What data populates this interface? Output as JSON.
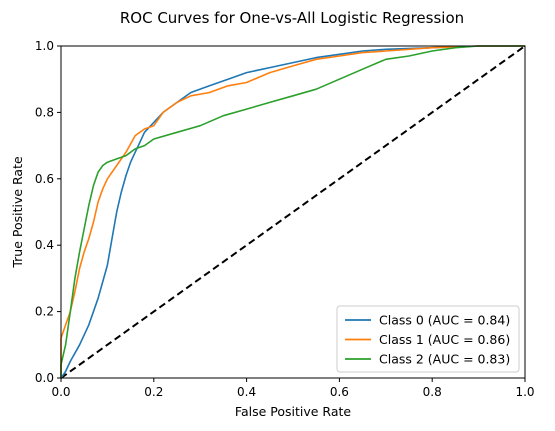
{
  "chart_data": {
    "type": "line",
    "title": "ROC Curves for One-vs-All Logistic Regression",
    "xlabel": "False Positive Rate",
    "ylabel": "True Positive Rate",
    "xlim": [
      0.0,
      1.0
    ],
    "ylim": [
      0.0,
      1.0
    ],
    "xticks": [
      0.0,
      0.2,
      0.4,
      0.6,
      0.8,
      1.0
    ],
    "yticks": [
      0.0,
      0.2,
      0.4,
      0.6,
      0.8,
      1.0
    ],
    "xtick_labels": [
      "0.0",
      "0.2",
      "0.4",
      "0.6",
      "0.8",
      "1.0"
    ],
    "ytick_labels": [
      "0.0",
      "0.2",
      "0.4",
      "0.6",
      "0.8",
      "1.0"
    ],
    "grid": false,
    "legend_position": "lower-right",
    "series": [
      {
        "name": "Class 0 (AUC = 0.84)",
        "color": "#1f77b4",
        "x": [
          0.0,
          0.01,
          0.02,
          0.04,
          0.06,
          0.08,
          0.1,
          0.11,
          0.12,
          0.13,
          0.14,
          0.15,
          0.16,
          0.17,
          0.18,
          0.2,
          0.22,
          0.25,
          0.28,
          0.32,
          0.36,
          0.4,
          0.45,
          0.5,
          0.55,
          0.6,
          0.65,
          0.7,
          0.8,
          0.9,
          1.0
        ],
        "y": [
          0.0,
          0.02,
          0.05,
          0.1,
          0.16,
          0.24,
          0.34,
          0.42,
          0.5,
          0.56,
          0.61,
          0.65,
          0.68,
          0.71,
          0.74,
          0.77,
          0.8,
          0.83,
          0.86,
          0.88,
          0.9,
          0.92,
          0.935,
          0.95,
          0.965,
          0.975,
          0.985,
          0.99,
          0.995,
          1.0,
          1.0
        ]
      },
      {
        "name": "Class 1 (AUC = 0.86)",
        "color": "#ff7f0e",
        "x": [
          0.0,
          0.0,
          0.01,
          0.02,
          0.03,
          0.04,
          0.05,
          0.06,
          0.07,
          0.08,
          0.09,
          0.1,
          0.12,
          0.14,
          0.16,
          0.18,
          0.2,
          0.22,
          0.25,
          0.28,
          0.32,
          0.36,
          0.4,
          0.45,
          0.5,
          0.55,
          0.6,
          0.65,
          0.7,
          0.8,
          0.9,
          1.0
        ],
        "y": [
          0.0,
          0.12,
          0.16,
          0.2,
          0.26,
          0.33,
          0.38,
          0.42,
          0.47,
          0.53,
          0.57,
          0.6,
          0.64,
          0.68,
          0.73,
          0.75,
          0.76,
          0.8,
          0.83,
          0.85,
          0.86,
          0.88,
          0.89,
          0.92,
          0.94,
          0.96,
          0.97,
          0.98,
          0.985,
          0.995,
          1.0,
          1.0
        ]
      },
      {
        "name": "Class 2 (AUC = 0.83)",
        "color": "#2ca02c",
        "x": [
          0.0,
          0.0,
          0.01,
          0.02,
          0.03,
          0.04,
          0.05,
          0.06,
          0.07,
          0.08,
          0.09,
          0.1,
          0.12,
          0.14,
          0.16,
          0.18,
          0.2,
          0.25,
          0.3,
          0.35,
          0.4,
          0.45,
          0.5,
          0.55,
          0.6,
          0.65,
          0.7,
          0.75,
          0.8,
          0.85,
          0.9,
          1.0
        ],
        "y": [
          0.0,
          0.04,
          0.1,
          0.2,
          0.3,
          0.38,
          0.45,
          0.52,
          0.58,
          0.62,
          0.64,
          0.65,
          0.66,
          0.67,
          0.69,
          0.7,
          0.72,
          0.74,
          0.76,
          0.79,
          0.81,
          0.83,
          0.85,
          0.87,
          0.9,
          0.93,
          0.96,
          0.97,
          0.985,
          0.995,
          1.0,
          1.0
        ]
      }
    ],
    "reference_line": {
      "x": [
        0.0,
        1.0
      ],
      "y": [
        0.0,
        1.0
      ],
      "color": "#000000",
      "style": "dashed"
    }
  }
}
